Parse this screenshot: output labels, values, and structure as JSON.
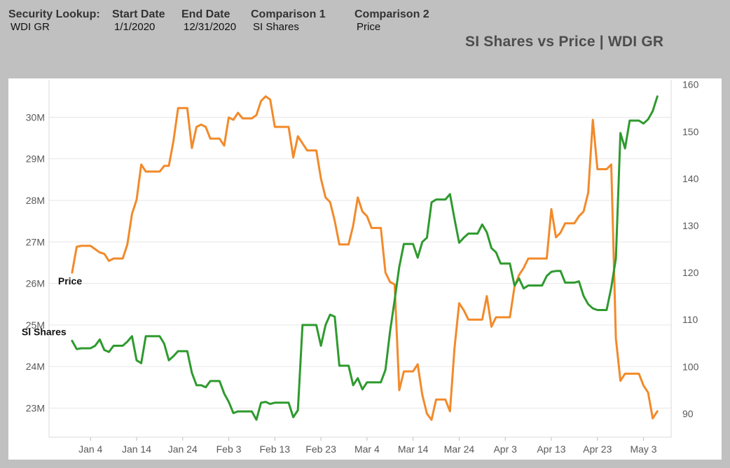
{
  "filters": {
    "security": {
      "label": "Security Lookup:",
      "value": "WDI GR"
    },
    "start_date": {
      "label": "Start Date",
      "value": "1/1/2020"
    },
    "end_date": {
      "label": "End Date",
      "value": "12/31/2020"
    },
    "comparison1": {
      "label": "Comparison 1",
      "value": "SI Shares"
    },
    "comparison2": {
      "label": "Comparison 2",
      "value": "Price"
    }
  },
  "chart_data": {
    "type": "line",
    "title": "SI Shares vs Price | WDI GR",
    "xlabel": "",
    "ylabel": "",
    "xlim": [
      "2019-12-26",
      "2020-05-09"
    ],
    "x_ticks": [
      "Jan 4",
      "Jan 14",
      "Jan 24",
      "Feb 3",
      "Feb 13",
      "Feb 23",
      "Mar 4",
      "Mar 14",
      "Mar 24",
      "Apr 3",
      "Apr 13",
      "Apr 23",
      "May 3"
    ],
    "y_left": {
      "ticks": [
        "23M",
        "24M",
        "25M",
        "26M",
        "27M",
        "28M",
        "29M",
        "30M"
      ],
      "ylim": [
        22300000,
        30900000
      ]
    },
    "y_right": {
      "ticks": [
        "90",
        "100",
        "110",
        "120",
        "130",
        "140",
        "150",
        "160"
      ],
      "ylim": [
        85,
        161
      ]
    },
    "grid": true,
    "colors": {
      "si_shares": "#2e9a2e",
      "price": "#f28a2a"
    },
    "series": [
      {
        "name": "Price",
        "axis": "right",
        "color": "#f28a2a",
        "label": "Price",
        "points": [
          [
            "2019-12-31",
            120.0
          ],
          [
            "2020-01-01",
            125.5
          ],
          [
            "2020-01-02",
            125.7
          ],
          [
            "2020-01-03",
            125.7
          ],
          [
            "2020-01-04",
            125.7
          ],
          [
            "2020-01-05",
            125.0
          ],
          [
            "2020-01-06",
            124.3
          ],
          [
            "2020-01-07",
            124.0
          ],
          [
            "2020-01-08",
            122.5
          ],
          [
            "2020-01-09",
            123.0
          ],
          [
            "2020-01-10",
            123.0
          ],
          [
            "2020-01-11",
            123.0
          ],
          [
            "2020-01-12",
            126.0
          ],
          [
            "2020-01-13",
            132.5
          ],
          [
            "2020-01-14",
            135.5
          ],
          [
            "2020-01-15",
            143.0
          ],
          [
            "2020-01-16",
            141.5
          ],
          [
            "2020-01-17",
            141.5
          ],
          [
            "2020-01-18",
            141.5
          ],
          [
            "2020-01-19",
            141.5
          ],
          [
            "2020-01-20",
            142.7
          ],
          [
            "2020-01-21",
            142.7
          ],
          [
            "2020-01-22",
            148.0
          ],
          [
            "2020-01-23",
            155.0
          ],
          [
            "2020-01-24",
            155.0
          ],
          [
            "2020-01-25",
            155.0
          ],
          [
            "2020-01-26",
            146.5
          ],
          [
            "2020-01-27",
            151.0
          ],
          [
            "2020-01-28",
            151.5
          ],
          [
            "2020-01-29",
            151.0
          ],
          [
            "2020-01-30",
            148.5
          ],
          [
            "2020-01-31",
            148.5
          ],
          [
            "2020-02-01",
            148.5
          ],
          [
            "2020-02-02",
            147.0
          ],
          [
            "2020-02-03",
            153.0
          ],
          [
            "2020-02-04",
            152.5
          ],
          [
            "2020-02-05",
            154.0
          ],
          [
            "2020-02-06",
            152.8
          ],
          [
            "2020-02-07",
            152.8
          ],
          [
            "2020-02-08",
            152.8
          ],
          [
            "2020-02-09",
            153.5
          ],
          [
            "2020-02-10",
            156.5
          ],
          [
            "2020-02-11",
            157.5
          ],
          [
            "2020-02-12",
            156.8
          ],
          [
            "2020-02-13",
            151.0
          ],
          [
            "2020-02-14",
            151.0
          ],
          [
            "2020-02-15",
            151.0
          ],
          [
            "2020-02-16",
            151.0
          ],
          [
            "2020-02-17",
            144.5
          ],
          [
            "2020-02-18",
            149.0
          ],
          [
            "2020-02-19",
            147.5
          ],
          [
            "2020-02-20",
            146.0
          ],
          [
            "2020-02-21",
            146.0
          ],
          [
            "2020-02-22",
            146.0
          ],
          [
            "2020-02-23",
            140.0
          ],
          [
            "2020-02-24",
            136.0
          ],
          [
            "2020-02-25",
            135.0
          ],
          [
            "2020-02-26",
            131.0
          ],
          [
            "2020-02-27",
            126.0
          ],
          [
            "2020-02-28",
            126.0
          ],
          [
            "2020-02-29",
            126.0
          ],
          [
            "2020-03-01",
            130.0
          ],
          [
            "2020-03-02",
            136.0
          ],
          [
            "2020-03-03",
            133.0
          ],
          [
            "2020-03-04",
            132.0
          ],
          [
            "2020-03-05",
            129.5
          ],
          [
            "2020-03-06",
            129.5
          ],
          [
            "2020-03-07",
            129.5
          ],
          [
            "2020-03-08",
            120.0
          ],
          [
            "2020-03-09",
            118.0
          ],
          [
            "2020-03-10",
            117.5
          ],
          [
            "2020-03-11",
            95.0
          ],
          [
            "2020-03-12",
            99.0
          ],
          [
            "2020-03-13",
            99.0
          ],
          [
            "2020-03-14",
            99.0
          ],
          [
            "2020-03-15",
            100.5
          ],
          [
            "2020-03-16",
            94.0
          ],
          [
            "2020-03-17",
            90.0
          ],
          [
            "2020-03-18",
            88.7
          ],
          [
            "2020-03-19",
            93.0
          ],
          [
            "2020-03-20",
            93.0
          ],
          [
            "2020-03-21",
            93.0
          ],
          [
            "2020-03-22",
            90.5
          ],
          [
            "2020-03-23",
            104.0
          ],
          [
            "2020-03-24",
            113.5
          ],
          [
            "2020-03-25",
            112.0
          ],
          [
            "2020-03-26",
            110.0
          ],
          [
            "2020-03-27",
            110.0
          ],
          [
            "2020-03-28",
            110.0
          ],
          [
            "2020-03-29",
            110.0
          ],
          [
            "2020-03-30",
            115.0
          ],
          [
            "2020-03-31",
            108.5
          ],
          [
            "2020-04-01",
            110.5
          ],
          [
            "2020-04-02",
            110.5
          ],
          [
            "2020-04-03",
            110.5
          ],
          [
            "2020-04-04",
            110.5
          ],
          [
            "2020-04-05",
            117.0
          ],
          [
            "2020-04-06",
            119.5
          ],
          [
            "2020-04-07",
            121.0
          ],
          [
            "2020-04-08",
            123.0
          ],
          [
            "2020-04-09",
            123.0
          ],
          [
            "2020-04-10",
            123.0
          ],
          [
            "2020-04-11",
            123.0
          ],
          [
            "2020-04-12",
            123.0
          ],
          [
            "2020-04-13",
            133.5
          ],
          [
            "2020-04-14",
            127.5
          ],
          [
            "2020-04-15",
            128.5
          ],
          [
            "2020-04-16",
            130.5
          ],
          [
            "2020-04-17",
            130.5
          ],
          [
            "2020-04-18",
            130.5
          ],
          [
            "2020-04-19",
            132.0
          ],
          [
            "2020-04-20",
            133.0
          ],
          [
            "2020-04-21",
            137.0
          ],
          [
            "2020-04-22",
            152.5
          ],
          [
            "2020-04-23",
            142.0
          ],
          [
            "2020-04-24",
            142.0
          ],
          [
            "2020-04-25",
            142.0
          ],
          [
            "2020-04-26",
            143.0
          ],
          [
            "2020-04-27",
            106.0
          ],
          [
            "2020-04-28",
            97.0
          ],
          [
            "2020-04-29",
            98.5
          ],
          [
            "2020-04-30",
            98.5
          ],
          [
            "2020-05-01",
            98.5
          ],
          [
            "2020-05-02",
            98.5
          ],
          [
            "2020-05-03",
            96.0
          ],
          [
            "2020-05-04",
            94.5
          ],
          [
            "2020-05-05",
            89.0
          ],
          [
            "2020-05-06",
            90.5
          ]
        ]
      },
      {
        "name": "SI Shares",
        "axis": "left",
        "color": "#2e9a2e",
        "label": "SI Shares",
        "points": [
          [
            "2019-12-31",
            24.62
          ],
          [
            "2020-01-01",
            24.42
          ],
          [
            "2020-01-02",
            24.44
          ],
          [
            "2020-01-03",
            24.44
          ],
          [
            "2020-01-04",
            24.44
          ],
          [
            "2020-01-05",
            24.5
          ],
          [
            "2020-01-06",
            24.65
          ],
          [
            "2020-01-07",
            24.4
          ],
          [
            "2020-01-08",
            24.35
          ],
          [
            "2020-01-09",
            24.5
          ],
          [
            "2020-01-10",
            24.5
          ],
          [
            "2020-01-11",
            24.5
          ],
          [
            "2020-01-12",
            24.6
          ],
          [
            "2020-01-13",
            24.73
          ],
          [
            "2020-01-14",
            24.15
          ],
          [
            "2020-01-15",
            24.08
          ],
          [
            "2020-01-16",
            24.73
          ],
          [
            "2020-01-17",
            24.73
          ],
          [
            "2020-01-18",
            24.73
          ],
          [
            "2020-01-19",
            24.73
          ],
          [
            "2020-01-20",
            24.55
          ],
          [
            "2020-01-21",
            24.15
          ],
          [
            "2020-01-22",
            24.25
          ],
          [
            "2020-01-23",
            24.37
          ],
          [
            "2020-01-24",
            24.37
          ],
          [
            "2020-01-25",
            24.37
          ],
          [
            "2020-01-26",
            23.85
          ],
          [
            "2020-01-27",
            23.55
          ],
          [
            "2020-01-28",
            23.55
          ],
          [
            "2020-01-29",
            23.5
          ],
          [
            "2020-01-30",
            23.65
          ],
          [
            "2020-01-31",
            23.65
          ],
          [
            "2020-02-01",
            23.65
          ],
          [
            "2020-02-02",
            23.35
          ],
          [
            "2020-02-03",
            23.15
          ],
          [
            "2020-02-04",
            22.88
          ],
          [
            "2020-02-05",
            22.92
          ],
          [
            "2020-02-06",
            22.92
          ],
          [
            "2020-02-07",
            22.92
          ],
          [
            "2020-02-08",
            22.92
          ],
          [
            "2020-02-09",
            22.72
          ],
          [
            "2020-02-10",
            23.13
          ],
          [
            "2020-02-11",
            23.15
          ],
          [
            "2020-02-12",
            23.1
          ],
          [
            "2020-02-13",
            23.13
          ],
          [
            "2020-02-14",
            23.13
          ],
          [
            "2020-02-15",
            23.13
          ],
          [
            "2020-02-16",
            23.13
          ],
          [
            "2020-02-17",
            22.78
          ],
          [
            "2020-02-18",
            22.95
          ],
          [
            "2020-02-19",
            25.0
          ],
          [
            "2020-02-20",
            25.0
          ],
          [
            "2020-02-21",
            25.0
          ],
          [
            "2020-02-22",
            25.0
          ],
          [
            "2020-02-23",
            24.5
          ],
          [
            "2020-02-24",
            25.0
          ],
          [
            "2020-02-25",
            25.25
          ],
          [
            "2020-02-26",
            25.2
          ],
          [
            "2020-02-27",
            24.02
          ],
          [
            "2020-02-28",
            24.02
          ],
          [
            "2020-02-29",
            24.02
          ],
          [
            "2020-03-01",
            23.55
          ],
          [
            "2020-03-02",
            23.72
          ],
          [
            "2020-03-03",
            23.45
          ],
          [
            "2020-03-04",
            23.62
          ],
          [
            "2020-03-05",
            23.62
          ],
          [
            "2020-03-06",
            23.62
          ],
          [
            "2020-03-07",
            23.62
          ],
          [
            "2020-03-08",
            23.92
          ],
          [
            "2020-03-09",
            24.85
          ],
          [
            "2020-03-10",
            25.6
          ],
          [
            "2020-03-11",
            26.4
          ],
          [
            "2020-03-12",
            26.95
          ],
          [
            "2020-03-13",
            26.95
          ],
          [
            "2020-03-14",
            26.95
          ],
          [
            "2020-03-15",
            26.62
          ],
          [
            "2020-03-16",
            27.0
          ],
          [
            "2020-03-17",
            27.1
          ],
          [
            "2020-03-18",
            27.95
          ],
          [
            "2020-03-19",
            28.02
          ],
          [
            "2020-03-20",
            28.02
          ],
          [
            "2020-03-21",
            28.02
          ],
          [
            "2020-03-22",
            28.15
          ],
          [
            "2020-03-23",
            27.55
          ],
          [
            "2020-03-24",
            26.98
          ],
          [
            "2020-03-25",
            27.1
          ],
          [
            "2020-03-26",
            27.2
          ],
          [
            "2020-03-27",
            27.2
          ],
          [
            "2020-03-28",
            27.2
          ],
          [
            "2020-03-29",
            27.42
          ],
          [
            "2020-03-30",
            27.23
          ],
          [
            "2020-03-31",
            26.85
          ],
          [
            "2020-04-01",
            26.75
          ],
          [
            "2020-04-02",
            26.48
          ],
          [
            "2020-04-03",
            26.48
          ],
          [
            "2020-04-04",
            26.48
          ],
          [
            "2020-04-05",
            25.95
          ],
          [
            "2020-04-06",
            26.12
          ],
          [
            "2020-04-07",
            25.88
          ],
          [
            "2020-04-08",
            25.95
          ],
          [
            "2020-04-09",
            25.95
          ],
          [
            "2020-04-10",
            25.95
          ],
          [
            "2020-04-11",
            25.95
          ],
          [
            "2020-04-12",
            26.18
          ],
          [
            "2020-04-13",
            26.28
          ],
          [
            "2020-04-14",
            26.3
          ],
          [
            "2020-04-15",
            26.3
          ],
          [
            "2020-04-16",
            26.02
          ],
          [
            "2020-04-17",
            26.02
          ],
          [
            "2020-04-18",
            26.02
          ],
          [
            "2020-04-19",
            26.05
          ],
          [
            "2020-04-20",
            25.7
          ],
          [
            "2020-04-21",
            25.5
          ],
          [
            "2020-04-22",
            25.4
          ],
          [
            "2020-04-23",
            25.36
          ],
          [
            "2020-04-24",
            25.36
          ],
          [
            "2020-04-25",
            25.36
          ],
          [
            "2020-04-26",
            25.9
          ],
          [
            "2020-04-27",
            26.6
          ],
          [
            "2020-04-28",
            29.62
          ],
          [
            "2020-04-29",
            29.25
          ],
          [
            "2020-04-30",
            29.92
          ],
          [
            "2020-05-01",
            29.92
          ],
          [
            "2020-05-02",
            29.92
          ],
          [
            "2020-05-03",
            29.85
          ],
          [
            "2020-05-04",
            29.95
          ],
          [
            "2020-05-05",
            30.15
          ],
          [
            "2020-05-06",
            30.5
          ]
        ]
      }
    ]
  }
}
